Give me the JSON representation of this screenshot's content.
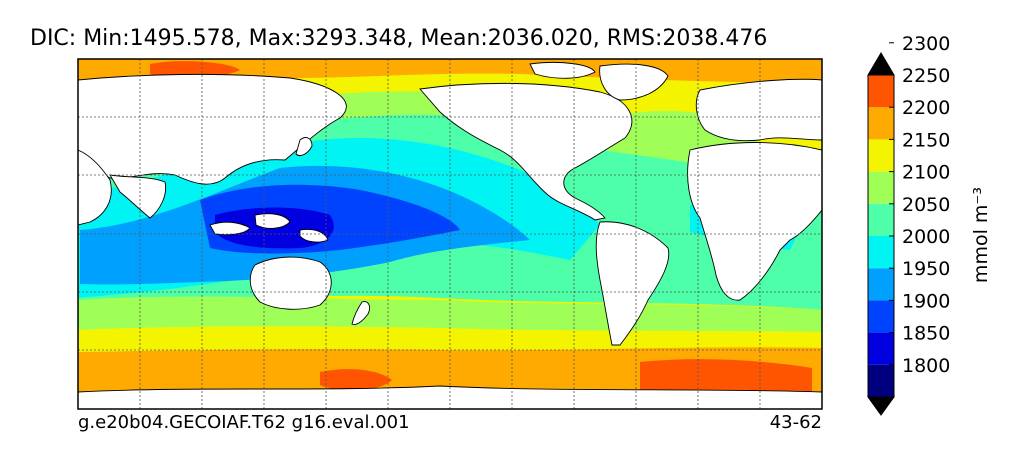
{
  "title": "DIC: Min:1495.578, Max:3293.348, Mean:2036.020, RMS:2038.476",
  "footer": {
    "left": "g.e20b04.GECOIAF.T62 g16.eval.001",
    "right": "43-62"
  },
  "colorbar": {
    "unit": "mmol m⁻³",
    "ticks": [
      "1800",
      "1850",
      "1900",
      "1950",
      "2000",
      "2050",
      "2100",
      "2150",
      "2200",
      "2250",
      "2300"
    ],
    "colors": [
      "#00007f",
      "#0000e0",
      "#0043ff",
      "#00a0ff",
      "#00f4f4",
      "#4dffa9",
      "#a0ff56",
      "#f4f400",
      "#ffaa00",
      "#ff5500",
      "#e60000",
      "#7f0000"
    ]
  },
  "colors": {
    "land": "#ffffff",
    "frame": "#000000",
    "grid": "#555555"
  }
}
